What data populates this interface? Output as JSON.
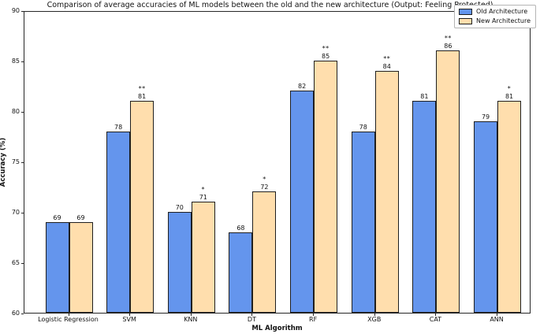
{
  "title": "Comparison of average accuracies of ML models between the old and the new architecture (Output: Feeling Protected)",
  "chart_data": {
    "type": "bar",
    "title": "Comparison of average accuracies of ML models between the old and the new architecture (Output: Feeling Protected)",
    "xlabel": "ML Algorithm",
    "ylabel": "Accuracy (%)",
    "categories": [
      "Logistic Regression",
      "SVM",
      "KNN",
      "DT",
      "RF",
      "XGB",
      "CAT",
      "ANN"
    ],
    "series": [
      {
        "name": "Old Architecture",
        "color": "#6495ed",
        "values": [
          69,
          78,
          70,
          68,
          82,
          78,
          81,
          79
        ]
      },
      {
        "name": "New Architecture",
        "color": "#ffdead",
        "values": [
          69,
          81,
          71,
          72,
          85,
          84,
          86,
          81
        ]
      }
    ],
    "significance_markers": [
      "",
      "**",
      "*",
      "*",
      "**",
      "**",
      "**",
      "*"
    ],
    "value_labels_shown": true,
    "ylim": [
      60,
      90
    ],
    "yticks": [
      60,
      65,
      70,
      75,
      80,
      85,
      90
    ],
    "grid": false,
    "legend_position": "upper right",
    "bar_edge_color": "#1f1f1f"
  }
}
